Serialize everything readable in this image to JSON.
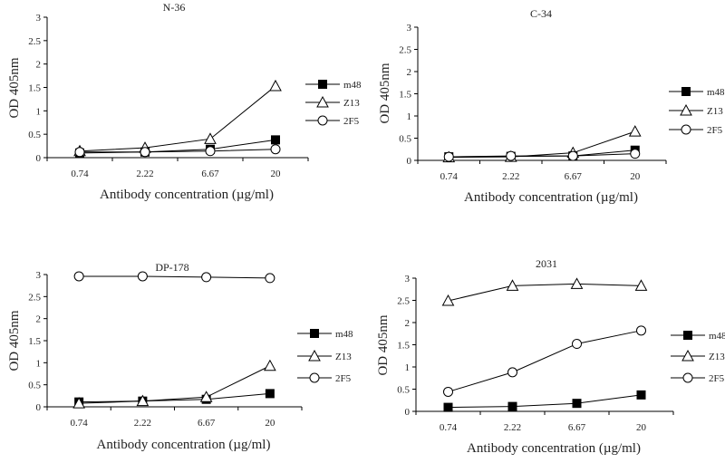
{
  "chart_data": [
    {
      "type": "line",
      "title": "N-36",
      "xlabel": "Antibody concentration (µg/ml)",
      "ylabel": "OD 405nm",
      "categories": [
        "0.74",
        "2.22",
        "6.67",
        "20"
      ],
      "ylim": [
        0,
        3
      ],
      "yticks": [
        "0",
        "0.5",
        "1",
        "1.5",
        "2",
        "2.5",
        "3"
      ],
      "legend": "right",
      "series": [
        {
          "name": "m48",
          "marker": "filled-square",
          "values": [
            0.1,
            0.12,
            0.18,
            0.38
          ]
        },
        {
          "name": "Z13",
          "marker": "open-triangle",
          "values": [
            0.14,
            0.21,
            0.4,
            1.53
          ]
        },
        {
          "name": "2F5",
          "marker": "open-circle",
          "values": [
            0.12,
            0.12,
            0.14,
            0.18
          ]
        }
      ]
    },
    {
      "type": "line",
      "title": "C-34",
      "xlabel": "Antibody concentration (µg/ml)",
      "ylabel": "OD 405nm",
      "categories": [
        "0.74",
        "2.22",
        "6.67",
        "20"
      ],
      "ylim": [
        0,
        3
      ],
      "yticks": [
        "0",
        "0.5",
        "1",
        "1.5",
        "2",
        "2.5",
        "3"
      ],
      "legend": "right",
      "series": [
        {
          "name": "m48",
          "marker": "filled-square",
          "values": [
            0.08,
            0.09,
            0.1,
            0.23
          ]
        },
        {
          "name": "Z13",
          "marker": "open-triangle",
          "values": [
            0.07,
            0.08,
            0.17,
            0.65
          ]
        },
        {
          "name": "2F5",
          "marker": "open-circle",
          "values": [
            0.08,
            0.1,
            0.1,
            0.15
          ]
        }
      ]
    },
    {
      "type": "line",
      "title": "DP-178",
      "xlabel": "Antibody concentration (µg/ml)",
      "ylabel": "OD 405nm",
      "categories": [
        "0.74",
        "2.22",
        "6.67",
        "20"
      ],
      "ylim": [
        0,
        3
      ],
      "yticks": [
        "0",
        "0.5",
        "1",
        "1.5",
        "2",
        "2.5",
        "3"
      ],
      "legend": "right",
      "series": [
        {
          "name": "m48",
          "marker": "filled-square",
          "values": [
            0.11,
            0.13,
            0.17,
            0.3
          ]
        },
        {
          "name": "Z13",
          "marker": "open-triangle",
          "values": [
            0.08,
            0.13,
            0.22,
            0.93
          ]
        },
        {
          "name": "2F5",
          "marker": "open-circle",
          "values": [
            2.96,
            2.96,
            2.94,
            2.92
          ]
        }
      ]
    },
    {
      "type": "line",
      "title": "2031",
      "xlabel": "Antibody concentration (µg/ml)",
      "ylabel": "OD 405nm",
      "categories": [
        "0.74",
        "2.22",
        "6.67",
        "20"
      ],
      "ylim": [
        0,
        3
      ],
      "yticks": [
        "0",
        "0.5",
        "1",
        "1.5",
        "2",
        "2.5",
        "3"
      ],
      "legend": "right",
      "series": [
        {
          "name": "m48",
          "marker": "filled-square",
          "values": [
            0.09,
            0.11,
            0.18,
            0.37
          ]
        },
        {
          "name": "Z13",
          "marker": "open-triangle",
          "values": [
            2.49,
            2.83,
            2.87,
            2.83
          ]
        },
        {
          "name": "2F5",
          "marker": "open-circle",
          "values": [
            0.44,
            0.88,
            1.52,
            1.82
          ]
        }
      ]
    }
  ]
}
